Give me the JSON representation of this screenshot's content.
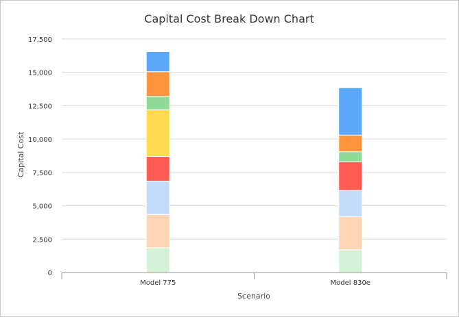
{
  "chart_data": {
    "type": "bar",
    "stacked": true,
    "title": "Capital Cost Break Down Chart",
    "xlabel": "Scenario",
    "ylabel": "Capital Cost",
    "categories": [
      "Model 775",
      "Model 830e"
    ],
    "ylim": [
      0,
      17500
    ],
    "yticks": [
      0,
      2500,
      5000,
      7500,
      10000,
      12500,
      15000,
      17500
    ],
    "ytick_labels": [
      "0",
      "2,500",
      "5,000",
      "7,500",
      "10,000",
      "12,500",
      "15,000",
      "17,500"
    ],
    "grid": true,
    "legend": "none",
    "series": [
      {
        "color": "#d4f0d6",
        "values": [
          1850,
          1700
        ]
      },
      {
        "color": "#fdd4b4",
        "values": [
          2500,
          2500
        ]
      },
      {
        "color": "#c4dcfa",
        "values": [
          2500,
          1950
        ]
      },
      {
        "color": "#fe5b52",
        "values": [
          1850,
          2150
        ]
      },
      {
        "color": "#ffdc4e",
        "values": [
          3500,
          0
        ]
      },
      {
        "color": "#8ed994",
        "values": [
          1000,
          750
        ]
      },
      {
        "color": "#fd953e",
        "values": [
          1850,
          1250
        ]
      },
      {
        "color": "#5ba8fb",
        "values": [
          1500,
          3550
        ]
      }
    ]
  }
}
